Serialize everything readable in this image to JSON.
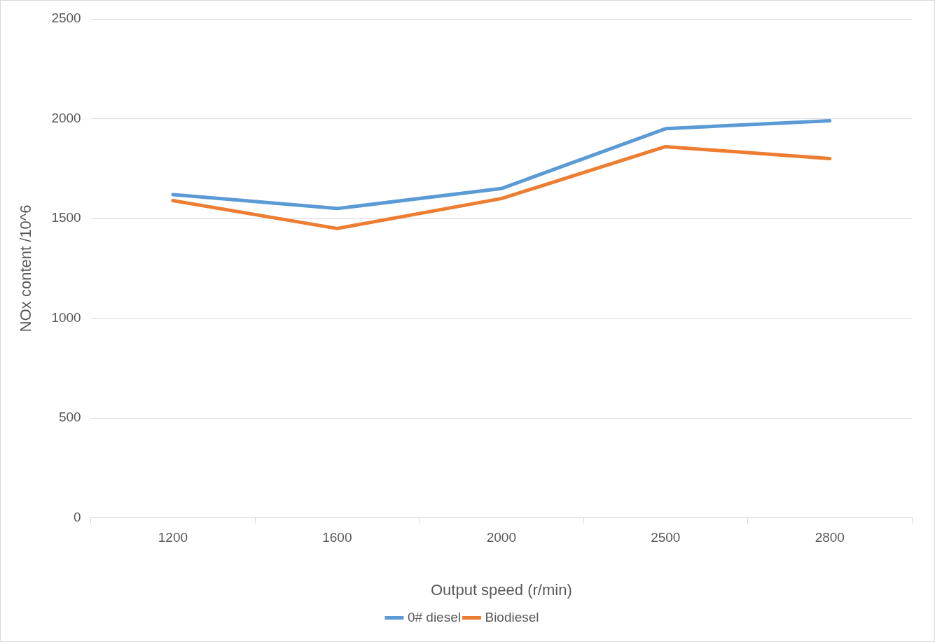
{
  "chart_data": {
    "type": "line",
    "xlabel": "Output speed (r/min)",
    "ylabel": "NOx content /10^6",
    "categories": [
      "1200",
      "1600",
      "2000",
      "2500",
      "2800"
    ],
    "series": [
      {
        "name": "0# diesel",
        "color": "#5b9bd5",
        "values": [
          1620,
          1550,
          1650,
          1950,
          1990
        ]
      },
      {
        "name": "Biodiesel",
        "color": "#ed7d31",
        "values": [
          1590,
          1450,
          1600,
          1860,
          1800
        ]
      }
    ],
    "ylim": [
      0,
      2500
    ],
    "yticks": [
      0,
      500,
      1000,
      1500,
      2000,
      2500
    ],
    "grid": "y",
    "legend": "bottom",
    "marker": "none",
    "line_style": "solid"
  }
}
